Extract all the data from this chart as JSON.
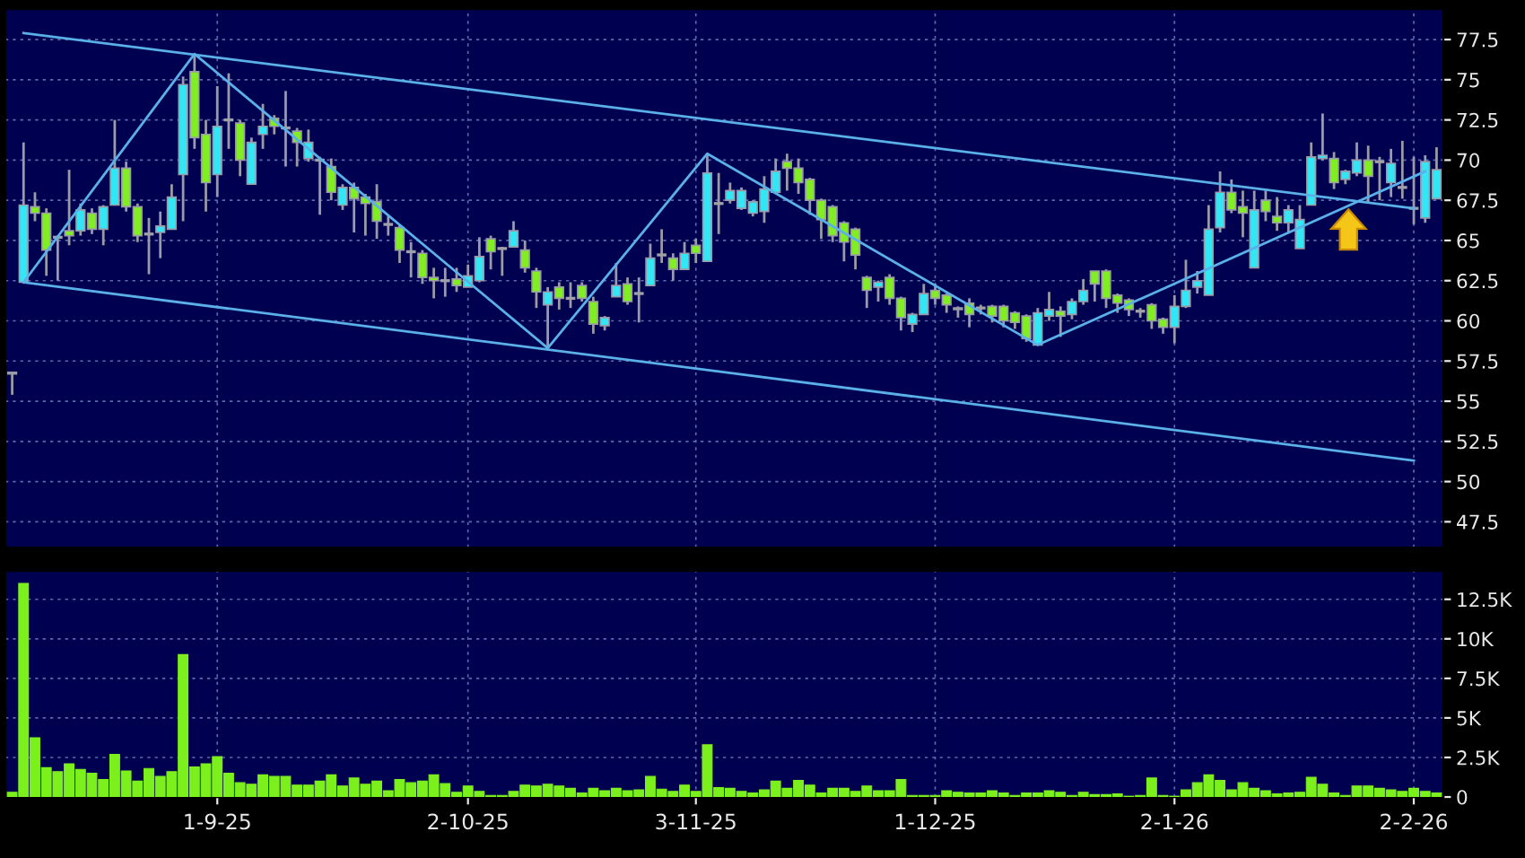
{
  "chart_data": [
    {
      "type": "candlestick",
      "categories": [
        null,
        null,
        null,
        null,
        null,
        null,
        null,
        null,
        null,
        null,
        null,
        null,
        null,
        null,
        null,
        null,
        null,
        null,
        null,
        null,
        null,
        null,
        null,
        null,
        null,
        null,
        null,
        null,
        null,
        null,
        null,
        null,
        null,
        null,
        null,
        null,
        null,
        null,
        null,
        null,
        null,
        null,
        null,
        null,
        null,
        null,
        null,
        null,
        null,
        null,
        null,
        null,
        null,
        null,
        null,
        null,
        null,
        null,
        null,
        null,
        null,
        null,
        null,
        null,
        null,
        null,
        null,
        null,
        null,
        null,
        null,
        null,
        null,
        null,
        null,
        null,
        null,
        null,
        null,
        null,
        null,
        null,
        null,
        null,
        null,
        null,
        null,
        null,
        null,
        null,
        null,
        null,
        null,
        null,
        null,
        null,
        null,
        null,
        null,
        null,
        null,
        null,
        null,
        null,
        null,
        null,
        null,
        null,
        null,
        null,
        null,
        null,
        null,
        null,
        null,
        null,
        null,
        null,
        null,
        null,
        null,
        null,
        null,
        null,
        null,
        null
      ],
      "ohlc": [
        [
          56.7,
          56.8,
          55.4,
          56.8
        ],
        [
          62.4,
          71.1,
          62.4,
          67.2
        ],
        [
          67.1,
          68.0,
          66.2,
          66.7
        ],
        [
          66.7,
          67.0,
          62.8,
          64.4
        ],
        [
          65.2,
          65.3,
          62.5,
          65.2
        ],
        [
          65.6,
          69.4,
          64.7,
          65.3
        ],
        [
          65.6,
          67.3,
          65.3,
          66.9
        ],
        [
          66.7,
          67.0,
          65.4,
          65.7
        ],
        [
          65.7,
          67.2,
          64.7,
          67.1
        ],
        [
          67.2,
          72.5,
          67.2,
          69.5
        ],
        [
          69.5,
          69.9,
          66.8,
          67.1
        ],
        [
          67.1,
          67.3,
          64.9,
          65.3
        ],
        [
          65.4,
          66.4,
          62.9,
          65.4
        ],
        [
          65.5,
          66.8,
          63.9,
          65.9
        ],
        [
          65.7,
          68.5,
          65.7,
          67.7
        ],
        [
          69.1,
          75.2,
          66.2,
          74.7
        ],
        [
          75.5,
          76.6,
          70.7,
          71.4
        ],
        [
          71.6,
          72.5,
          66.8,
          68.6
        ],
        [
          69.1,
          74.6,
          67.7,
          72.1
        ],
        [
          72.5,
          75.4,
          70.7,
          72.5
        ],
        [
          72.3,
          72.5,
          69.0,
          70.0
        ],
        [
          68.5,
          71.4,
          68.5,
          71.1
        ],
        [
          71.6,
          73.5,
          70.7,
          72.1
        ],
        [
          72.6,
          72.8,
          71.6,
          72.1
        ],
        [
          72.0,
          74.3,
          69.6,
          72.0
        ],
        [
          71.8,
          72.0,
          69.6,
          71.1
        ],
        [
          70.1,
          71.9,
          69.9,
          71.1
        ],
        [
          70.0,
          70.2,
          66.6,
          70.0
        ],
        [
          69.6,
          70.1,
          67.5,
          68.0
        ],
        [
          67.2,
          68.5,
          66.9,
          68.3
        ],
        [
          68.3,
          68.6,
          65.5,
          67.6
        ],
        [
          67.7,
          67.9,
          65.3,
          67.3
        ],
        [
          67.4,
          68.5,
          65.1,
          66.2
        ],
        [
          66.0,
          66.5,
          65.3,
          66.0
        ],
        [
          65.8,
          66.0,
          63.6,
          64.4
        ],
        [
          64.3,
          64.9,
          62.7,
          64.3
        ],
        [
          64.2,
          64.4,
          62.3,
          62.7
        ],
        [
          62.7,
          63.3,
          61.4,
          62.5
        ],
        [
          62.5,
          63.3,
          61.5,
          62.5
        ],
        [
          62.6,
          63.3,
          61.8,
          62.2
        ],
        [
          62.1,
          63.5,
          62.1,
          62.8
        ],
        [
          62.5,
          65.2,
          62.4,
          64.0
        ],
        [
          65.1,
          65.3,
          63.2,
          64.3
        ],
        [
          64.5,
          64.6,
          62.8,
          64.5
        ],
        [
          64.6,
          66.2,
          64.6,
          65.6
        ],
        [
          64.4,
          65.0,
          63.0,
          63.3
        ],
        [
          63.1,
          63.3,
          60.8,
          61.8
        ],
        [
          61.0,
          62.1,
          58.3,
          61.8
        ],
        [
          62.1,
          62.4,
          60.7,
          61.4
        ],
        [
          61.4,
          62.4,
          60.8,
          61.4
        ],
        [
          62.2,
          62.4,
          61.2,
          61.4
        ],
        [
          61.2,
          61.5,
          59.2,
          59.8
        ],
        [
          59.7,
          60.3,
          59.4,
          60.2
        ],
        [
          61.5,
          63.6,
          61.5,
          62.2
        ],
        [
          62.3,
          62.7,
          61.0,
          61.2
        ],
        [
          61.7,
          62.7,
          59.9,
          61.7
        ],
        [
          62.2,
          64.8,
          62.2,
          63.9
        ],
        [
          64.1,
          65.7,
          63.6,
          64.1
        ],
        [
          63.9,
          64.2,
          62.5,
          63.2
        ],
        [
          63.2,
          64.9,
          63.2,
          64.2
        ],
        [
          64.7,
          65.1,
          63.6,
          64.2
        ],
        [
          63.7,
          70.4,
          63.7,
          69.2
        ],
        [
          67.3,
          69.2,
          65.4,
          67.3
        ],
        [
          67.5,
          68.6,
          67.3,
          68.1
        ],
        [
          67.0,
          68.3,
          66.9,
          68.1
        ],
        [
          66.7,
          67.5,
          66.5,
          67.4
        ],
        [
          66.8,
          69.0,
          66.1,
          68.2
        ],
        [
          68.0,
          70.1,
          68.0,
          69.3
        ],
        [
          69.9,
          70.4,
          68.1,
          69.5
        ],
        [
          69.5,
          70.1,
          67.9,
          68.6
        ],
        [
          68.8,
          68.9,
          66.6,
          67.5
        ],
        [
          67.5,
          67.6,
          65.1,
          66.3
        ],
        [
          67.1,
          67.2,
          64.9,
          65.3
        ],
        [
          66.1,
          66.2,
          63.7,
          64.9
        ],
        [
          65.7,
          65.8,
          63.2,
          64.1
        ],
        [
          62.7,
          62.8,
          60.8,
          61.9
        ],
        [
          62.1,
          62.5,
          61.2,
          62.4
        ],
        [
          62.7,
          62.9,
          61.0,
          61.4
        ],
        [
          61.4,
          61.5,
          59.4,
          60.2
        ],
        [
          59.8,
          60.5,
          59.3,
          60.4
        ],
        [
          60.4,
          62.3,
          60.4,
          61.7
        ],
        [
          61.9,
          62.3,
          61.0,
          61.4
        ],
        [
          61.6,
          61.7,
          60.5,
          61.0
        ],
        [
          60.7,
          60.9,
          60.2,
          60.8
        ],
        [
          61.1,
          61.4,
          59.6,
          60.4
        ],
        [
          60.8,
          61.0,
          60.4,
          60.8
        ],
        [
          60.9,
          61.0,
          59.9,
          60.3
        ],
        [
          60.9,
          61.0,
          59.6,
          60.0
        ],
        [
          60.5,
          60.6,
          59.5,
          59.9
        ],
        [
          60.3,
          60.4,
          58.7,
          58.9
        ],
        [
          58.5,
          60.8,
          58.5,
          60.5
        ],
        [
          60.3,
          61.8,
          60.0,
          60.7
        ],
        [
          60.6,
          60.9,
          59.0,
          60.3
        ],
        [
          60.4,
          61.4,
          60.1,
          61.2
        ],
        [
          61.2,
          62.6,
          61.0,
          61.9
        ],
        [
          63.1,
          63.1,
          61.2,
          62.3
        ],
        [
          63.1,
          63.2,
          60.8,
          61.4
        ],
        [
          61.6,
          61.7,
          60.5,
          61.1
        ],
        [
          61.3,
          61.4,
          60.3,
          60.7
        ],
        [
          60.6,
          60.8,
          60.2,
          60.6
        ],
        [
          61.0,
          61.1,
          59.5,
          60.0
        ],
        [
          60.1,
          60.2,
          59.2,
          59.6
        ],
        [
          59.6,
          61.6,
          58.6,
          60.9
        ],
        [
          60.9,
          63.8,
          60.8,
          61.9
        ],
        [
          62.1,
          63.1,
          61.7,
          62.5
        ],
        [
          61.6,
          67.2,
          61.6,
          65.7
        ],
        [
          65.8,
          69.3,
          65.5,
          68.0
        ],
        [
          68.0,
          68.8,
          66.7,
          66.9
        ],
        [
          67.1,
          68.1,
          65.2,
          66.7
        ],
        [
          63.3,
          68.1,
          63.3,
          66.9
        ],
        [
          67.5,
          68.1,
          66.2,
          66.8
        ],
        [
          66.5,
          67.7,
          65.6,
          66.1
        ],
        [
          66.1,
          67.2,
          65.5,
          66.9
        ],
        [
          64.5,
          67.2,
          64.5,
          66.3
        ],
        [
          67.2,
          71.1,
          67.2,
          70.2
        ],
        [
          70.1,
          72.9,
          70.0,
          70.3
        ],
        [
          70.1,
          70.5,
          68.2,
          68.6
        ],
        [
          68.8,
          69.4,
          68.5,
          69.3
        ],
        [
          69.2,
          71.1,
          69.0,
          70.0
        ],
        [
          70.0,
          70.9,
          67.4,
          69.0
        ],
        [
          69.9,
          70.2,
          67.5,
          69.9
        ],
        [
          68.6,
          70.7,
          67.7,
          69.8
        ],
        [
          68.3,
          71.2,
          67.6,
          68.3
        ],
        [
          67.0,
          70.2,
          66.0,
          67.0
        ],
        [
          66.4,
          70.3,
          66.1,
          69.9
        ],
        [
          67.6,
          70.8,
          67.6,
          69.4
        ]
      ],
      "colors": [
        "#33e6f5",
        "#33e6f5",
        "#80ee22",
        "#80ee22",
        "#a0a0a8",
        "#80ee22",
        "#33e6f5",
        "#80ee22",
        "#33e6f5",
        "#33e6f5",
        "#80ee22",
        "#80ee22",
        "#a0a0a8",
        "#33e6f5",
        "#33e6f5",
        "#33e6f5",
        "#80ee22",
        "#80ee22",
        "#33e6f5",
        "#a0a0a8",
        "#80ee22",
        "#33e6f5",
        "#33e6f5",
        "#80ee22",
        "#a0a0a8",
        "#80ee22",
        "#33e6f5",
        "#a0a0a8",
        "#80ee22",
        "#33e6f5",
        "#80ee22",
        "#80ee22",
        "#80ee22",
        "#a0a0a8",
        "#80ee22",
        "#a0a0a8",
        "#80ee22",
        "#80ee22",
        "#a0a0a8",
        "#80ee22",
        "#33e6f5",
        "#33e6f5",
        "#80ee22",
        "#a0a0a8",
        "#33e6f5",
        "#80ee22",
        "#80ee22",
        "#33e6f5",
        "#80ee22",
        "#a0a0a8",
        "#80ee22",
        "#80ee22",
        "#33e6f5",
        "#33e6f5",
        "#80ee22",
        "#a0a0a8",
        "#33e6f5",
        "#a0a0a8",
        "#80ee22",
        "#33e6f5",
        "#80ee22",
        "#33e6f5",
        "#a0a0a8",
        "#33e6f5",
        "#33e6f5",
        "#33e6f5",
        "#33e6f5",
        "#33e6f5",
        "#80ee22",
        "#80ee22",
        "#80ee22",
        "#80ee22",
        "#80ee22",
        "#80ee22",
        "#80ee22",
        "#80ee22",
        "#33e6f5",
        "#80ee22",
        "#80ee22",
        "#33e6f5",
        "#33e6f5",
        "#80ee22",
        "#80ee22",
        "#33e6f5",
        "#80ee22",
        "#a0a0a8",
        "#80ee22",
        "#80ee22",
        "#80ee22",
        "#80ee22",
        "#33e6f5",
        "#33e6f5",
        "#80ee22",
        "#33e6f5",
        "#33e6f5",
        "#80ee22",
        "#80ee22",
        "#80ee22",
        "#80ee22",
        "#a0a0a8",
        "#80ee22",
        "#80ee22",
        "#33e6f5",
        "#33e6f5",
        "#33e6f5",
        "#33e6f5",
        "#33e6f5",
        "#80ee22",
        "#80ee22",
        "#33e6f5",
        "#80ee22",
        "#80ee22",
        "#33e6f5",
        "#33e6f5",
        "#33e6f5",
        "#33e6f5",
        "#80ee22",
        "#33e6f5",
        "#33e6f5",
        "#80ee22",
        "#a0a0a8",
        "#33e6f5",
        "#a0a0a8",
        "#a0a0a8",
        "#33e6f5",
        "#33e6f5"
      ],
      "series": [
        {
          "type": "line",
          "color": "#5ab0e8",
          "values": [
            null,
            62.4,
            null,
            null,
            null,
            null,
            null,
            null,
            null,
            null,
            null,
            null,
            null,
            null,
            null,
            null,
            76.6,
            null,
            null,
            null,
            null,
            null,
            null,
            null,
            null,
            null,
            null,
            null,
            null,
            null,
            null,
            null,
            null,
            null,
            null,
            null,
            null,
            null,
            null,
            null,
            null,
            null,
            null,
            null,
            null,
            null,
            null,
            58.3,
            null,
            null,
            null,
            null,
            null,
            null,
            null,
            null,
            null,
            null,
            null,
            null,
            null,
            70.4,
            null,
            null,
            null,
            null,
            null,
            null,
            null,
            null,
            null,
            null,
            null,
            null,
            null,
            null,
            null,
            null,
            null,
            null,
            null,
            null,
            null,
            null,
            null,
            null,
            null,
            null,
            null,
            null,
            58.5,
            null,
            null,
            null,
            null,
            null,
            null,
            null,
            null,
            null,
            null,
            null,
            null,
            null,
            null,
            null,
            null,
            null,
            null,
            null,
            null,
            null,
            null,
            null,
            null,
            null,
            null,
            null,
            null,
            null,
            null,
            null,
            null,
            null,
            69.3,
            null
          ]
        },
        {
          "type": "line",
          "color": "#5ab0e8",
          "values": [
            null,
            77.9,
            null,
            null,
            null,
            null,
            null,
            null,
            null,
            null,
            null,
            null,
            null,
            null,
            null,
            null,
            null,
            null,
            null,
            null,
            null,
            null,
            null,
            null,
            null,
            null,
            null,
            null,
            null,
            null,
            null,
            null,
            null,
            null,
            null,
            null,
            null,
            null,
            null,
            null,
            null,
            null,
            null,
            null,
            null,
            null,
            null,
            null,
            null,
            null,
            null,
            null,
            null,
            null,
            null,
            null,
            null,
            null,
            null,
            null,
            null,
            null,
            null,
            null,
            null,
            null,
            null,
            null,
            null,
            null,
            null,
            null,
            null,
            null,
            null,
            null,
            null,
            null,
            null,
            null,
            null,
            null,
            null,
            null,
            null,
            null,
            null,
            null,
            null,
            null,
            null,
            null,
            null,
            null,
            null,
            null,
            null,
            null,
            null,
            null,
            null,
            null,
            null,
            null,
            null,
            null,
            null,
            null,
            null,
            null,
            null,
            null,
            null,
            null,
            null,
            null,
            null,
            null,
            null,
            null,
            null,
            null,
            null,
            67.0,
            null,
            null
          ]
        },
        {
          "type": "line",
          "color": "#5ab0e8",
          "values": [
            null,
            62.4,
            null,
            null,
            null,
            null,
            null,
            null,
            null,
            null,
            null,
            null,
            null,
            null,
            null,
            null,
            null,
            null,
            null,
            null,
            null,
            null,
            null,
            null,
            null,
            null,
            null,
            null,
            null,
            null,
            null,
            null,
            null,
            null,
            null,
            null,
            null,
            null,
            null,
            null,
            null,
            null,
            null,
            null,
            null,
            null,
            null,
            null,
            null,
            null,
            null,
            null,
            null,
            null,
            null,
            null,
            null,
            null,
            null,
            null,
            null,
            null,
            null,
            null,
            null,
            null,
            null,
            null,
            null,
            null,
            null,
            null,
            null,
            null,
            null,
            null,
            null,
            null,
            null,
            null,
            null,
            null,
            null,
            null,
            null,
            null,
            null,
            null,
            null,
            null,
            null,
            null,
            null,
            null,
            null,
            null,
            null,
            null,
            null,
            null,
            null,
            null,
            null,
            null,
            null,
            null,
            null,
            null,
            null,
            null,
            null,
            null,
            null,
            null,
            null,
            null,
            null,
            null,
            null,
            null,
            null,
            null,
            null,
            51.3,
            null,
            null
          ]
        }
      ],
      "ylim": [
        45.9,
        79.4
      ],
      "yticks": [
        47.5,
        50,
        52.5,
        55,
        57.5,
        60,
        62.5,
        65,
        67.5,
        70,
        72.5,
        75,
        77.5
      ],
      "grid": true,
      "tick_labels": "y"
    },
    {
      "type": "bar",
      "categories": [
        null,
        null,
        null,
        null,
        null,
        null,
        null,
        null,
        null,
        null,
        null,
        null,
        null,
        null,
        null,
        null,
        null,
        null,
        "1-9-25",
        null,
        null,
        null,
        null,
        null,
        null,
        null,
        null,
        null,
        null,
        null,
        null,
        null,
        null,
        null,
        null,
        null,
        null,
        null,
        null,
        null,
        "2-10-25",
        null,
        null,
        null,
        null,
        null,
        null,
        null,
        null,
        null,
        null,
        null,
        null,
        null,
        null,
        null,
        null,
        null,
        null,
        null,
        "3-11-25",
        null,
        null,
        null,
        null,
        null,
        null,
        null,
        null,
        null,
        null,
        null,
        null,
        null,
        null,
        null,
        null,
        null,
        null,
        null,
        null,
        "1-12-25",
        null,
        null,
        null,
        null,
        null,
        null,
        null,
        null,
        null,
        null,
        null,
        null,
        null,
        null,
        null,
        null,
        null,
        null,
        null,
        null,
        "2-1-26",
        null,
        null,
        null,
        null,
        null,
        null,
        null,
        null,
        null,
        null,
        null,
        null,
        null,
        null,
        null,
        null,
        null,
        null,
        null,
        null,
        "2-2-26",
        null,
        null
      ],
      "values": [
        300,
        13500,
        3750,
        1850,
        1600,
        2100,
        1750,
        1500,
        1100,
        2700,
        1650,
        1000,
        1800,
        1300,
        1600,
        9000,
        1900,
        2100,
        2550,
        1500,
        900,
        800,
        1400,
        1300,
        1300,
        750,
        750,
        1000,
        1400,
        700,
        1200,
        800,
        1000,
        400,
        1100,
        900,
        1000,
        1400,
        850,
        300,
        700,
        350,
        100,
        100,
        350,
        750,
        700,
        800,
        700,
        550,
        250,
        550,
        400,
        550,
        400,
        450,
        1300,
        500,
        350,
        750,
        350,
        3300,
        600,
        550,
        350,
        250,
        450,
        1000,
        550,
        1050,
        750,
        250,
        550,
        550,
        350,
        700,
        400,
        400,
        1100,
        100,
        100,
        100,
        400,
        300,
        250,
        250,
        400,
        250,
        100,
        250,
        250,
        400,
        300,
        100,
        300,
        150,
        150,
        200,
        50,
        100,
        1200,
        100,
        50,
        450,
        900,
        1400,
        1050,
        450,
        900,
        550,
        400,
        200,
        250,
        300,
        1250,
        800,
        250,
        100,
        700,
        700,
        550,
        450,
        350,
        550,
        350,
        250
      ],
      "color": "#7cf01c",
      "ylim": [
        0,
        14300
      ],
      "yticks": [
        0,
        {
          "value": 2500,
          "label": "2.5K"
        },
        {
          "value": 5000,
          "label": "5K"
        },
        {
          "value": 7500,
          "label": "7.5K"
        },
        {
          "value": 10000,
          "label": "10K"
        },
        {
          "value": 12500,
          "label": "12.5K"
        }
      ],
      "grid": true
    }
  ]
}
